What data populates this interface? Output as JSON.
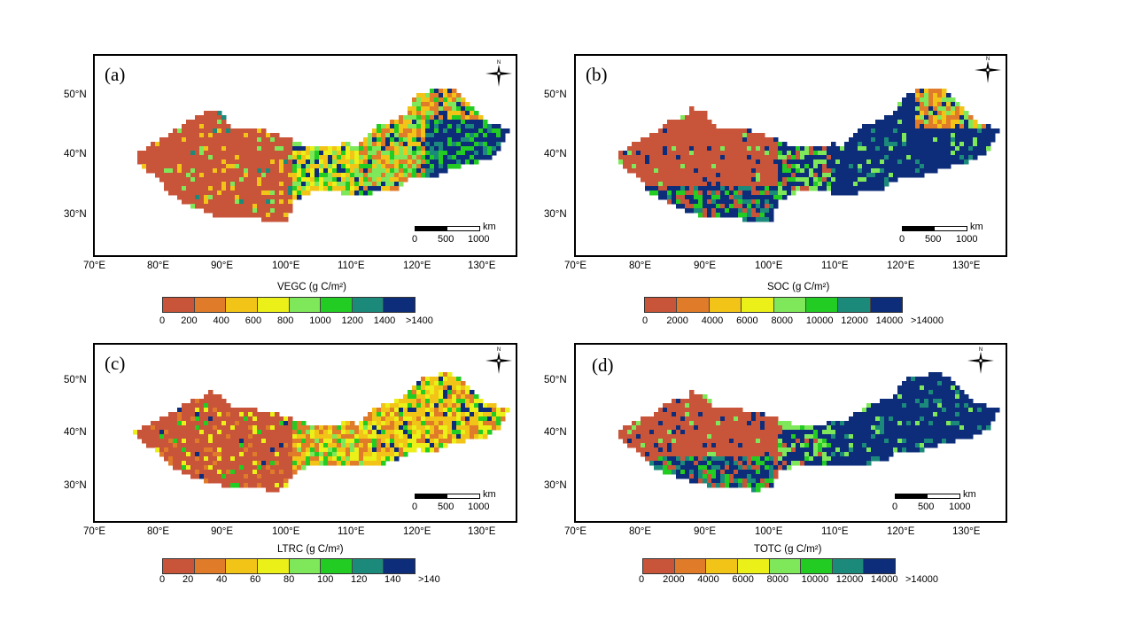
{
  "palette": [
    "#c8553a",
    "#e07b2a",
    "#f2c417",
    "#eaf018",
    "#7fe85a",
    "#22cc22",
    "#1c8a7a",
    "#0d2d7a"
  ],
  "panels": [
    {
      "id": "a",
      "label": "(a)",
      "legend": {
        "title": "VEGC (g C/m²)",
        "labels": [
          "0",
          "200",
          "400",
          "600",
          "800",
          "1000",
          "1200",
          "1400",
          ">1400"
        ]
      },
      "lat_ticks": [
        "50°N",
        "40°N",
        "30°N"
      ],
      "lon_ticks": [
        "70°E",
        "80°E",
        "90°E",
        "100°E",
        "110°E",
        "120°E",
        "130°E"
      ],
      "scale": {
        "unit": "km",
        "labels": [
          "0",
          "500",
          "1000"
        ]
      },
      "compass": "north-arrow-icon",
      "dominant": "vegetation gradient"
    },
    {
      "id": "b",
      "label": "(b)",
      "legend": {
        "title": "SOC (g C/m²)",
        "labels": [
          "0",
          "2000",
          "4000",
          "6000",
          "8000",
          "10000",
          "12000",
          "14000",
          ">14000"
        ]
      },
      "lat_ticks": [
        "50°N",
        "40°N",
        "30°N"
      ],
      "lon_ticks": [
        "70°E",
        "80°E",
        "90°E",
        "100°E",
        "110°E",
        "120°E",
        "130°E"
      ],
      "scale": {
        "unit": "km",
        "labels": [
          "0",
          "500",
          "1000"
        ]
      },
      "compass": "north-arrow-icon",
      "dominant": "east dark"
    },
    {
      "id": "c",
      "label": "(c)",
      "legend": {
        "title": "LTRC  (g C/m²)",
        "labels": [
          "0",
          "20",
          "40",
          "60",
          "80",
          "100",
          "120",
          "140",
          ">140"
        ]
      },
      "lat_ticks": [
        "50°N",
        "40°N",
        "30°N"
      ],
      "lon_ticks": [
        "70°E",
        "80°E",
        "90°E",
        "100°E",
        "110°E",
        "120°E",
        "130°E"
      ],
      "scale": {
        "unit": "km",
        "labels": [
          "0",
          "500",
          "1000"
        ]
      },
      "compass": "north-arrow-icon",
      "dominant": "litter mixed"
    },
    {
      "id": "d",
      "label": "(d)",
      "legend": {
        "title": "TOTC  (g C/m²)",
        "labels": [
          "0",
          "2000",
          "4000",
          "6000",
          "8000",
          "10000",
          "12000",
          "14000",
          ">14000"
        ]
      },
      "lat_ticks": [
        "50°N",
        "40°N",
        "30°N"
      ],
      "lon_ticks": [
        "70°E",
        "80°E",
        "90°E",
        "100°E",
        "110°E",
        "120°E",
        "130°E"
      ],
      "scale": {
        "unit": "km",
        "labels": [
          "0",
          "500",
          "1000"
        ]
      },
      "compass": "north-arrow-icon",
      "dominant": "east dark"
    }
  ]
}
